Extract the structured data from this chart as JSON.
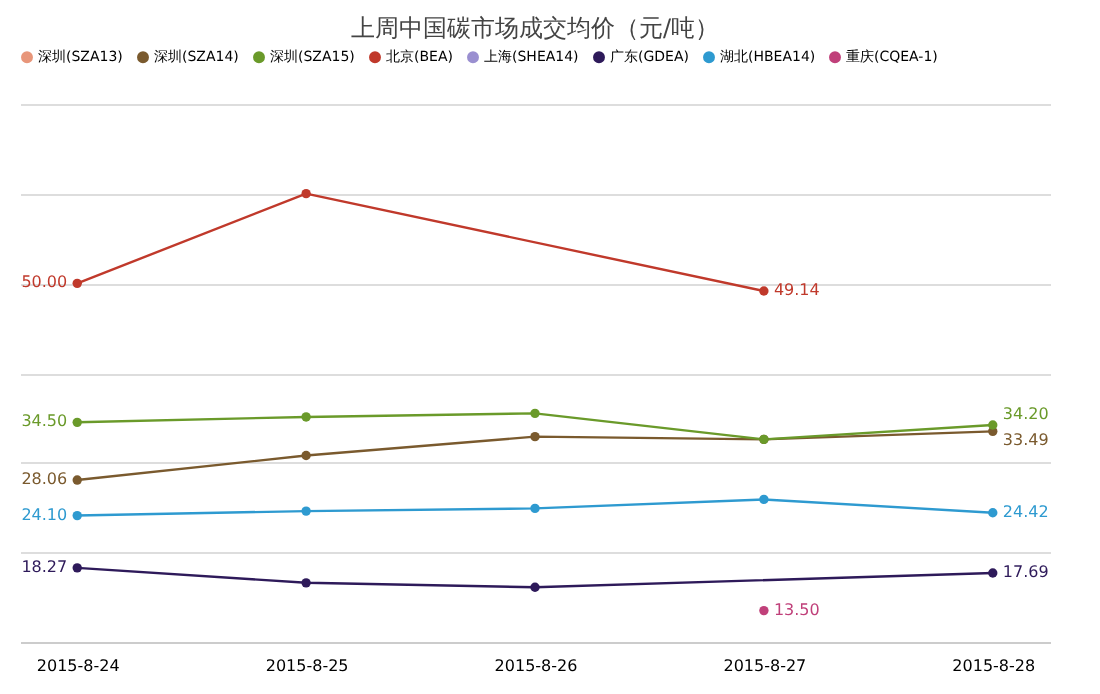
{
  "chart_data": {
    "type": "line",
    "title": "上周中国碳市场成交均价（元/吨）",
    "categories": [
      "2015-8-24",
      "2015-8-25",
      "2015-8-26",
      "2015-8-27",
      "2015-8-28"
    ],
    "ylim": [
      10,
      70
    ],
    "yticks": [
      {
        "value": 10,
        "label": null
      },
      {
        "value": 20,
        "label": null
      },
      {
        "value": 30,
        "label": null
      },
      {
        "value": 40,
        "label": null
      },
      {
        "value": 50,
        "label": null
      },
      {
        "value": 60,
        "label": null
      },
      {
        "value": 70,
        "label": null
      }
    ],
    "tick_labels": "x",
    "grid": "y",
    "legend": "top",
    "marker": "circle",
    "line_style": "solid",
    "series": [
      {
        "name": "深圳(SZA13)",
        "color": "#e8967a",
        "values": [
          null,
          null,
          null,
          null,
          null
        ]
      },
      {
        "name": "深圳(SZA14)",
        "color": "#7a5a2e",
        "values": [
          28.06,
          30.8,
          32.9,
          32.6,
          33.49
        ],
        "value_labels": [
          "28.06",
          null,
          null,
          null,
          "33.49"
        ]
      },
      {
        "name": "深圳(SZA15)",
        "color": "#6a9a2a",
        "values": [
          34.5,
          35.1,
          35.5,
          32.6,
          34.2
        ],
        "value_labels": [
          "34.50",
          null,
          null,
          null,
          "34.20"
        ]
      },
      {
        "name": "北京(BEA)",
        "color": "#c0392b",
        "values": [
          50.0,
          60.0,
          null,
          49.14,
          null
        ],
        "value_labels": [
          "50.00",
          null,
          null,
          "49.14",
          null
        ]
      },
      {
        "name": "上海(SHEA14)",
        "color": "#9a8fd0",
        "values": [
          null,
          null,
          null,
          null,
          null
        ]
      },
      {
        "name": "广东(GDEA)",
        "color": "#2e1a5a",
        "values": [
          18.27,
          16.6,
          16.1,
          null,
          17.69
        ],
        "value_labels": [
          "18.27",
          null,
          null,
          null,
          "17.69"
        ]
      },
      {
        "name": "湖北(HBEA14)",
        "color": "#2e9ad0",
        "values": [
          24.1,
          24.6,
          24.9,
          25.9,
          24.42
        ],
        "value_labels": [
          "24.10",
          null,
          null,
          null,
          "24.42"
        ]
      },
      {
        "name": "重庆(CQEA-1)",
        "color": "#c0407a",
        "values": [
          null,
          null,
          null,
          13.5,
          null
        ],
        "value_labels": [
          null,
          null,
          null,
          "13.50",
          null
        ]
      }
    ]
  }
}
